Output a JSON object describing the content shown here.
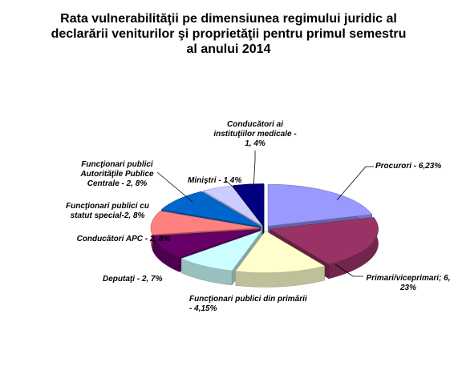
{
  "chart_data": {
    "type": "pie",
    "title": "Rata vulnerabilităţii  pe dimensiunea regimului juridic al declarării veniturilor şi proprietăţii pentru primul semestru al anului 2014",
    "values": [
      6.23,
      6.23,
      4.15,
      2.7,
      2.8,
      2.8,
      2.8,
      1.4,
      1.4
    ],
    "value_labels": [
      "Procurori - 6,23%",
      "Primari/viceprimari; 6, 23%",
      "Funcţionari publici din primării - 4,15%",
      "Deputaţi - 2, 7%",
      "Conducători APC - 2, 8%",
      "Funcţionari publici cu statut special-2, 8%",
      "Funcţionari publici Autorităţile Publice Centrale - 2, 8%",
      "Miniştri - 1 4%",
      "Conducători ai instituţiilor medicale - 1, 4%"
    ],
    "colors": [
      "#9999ff",
      "#993366",
      "#ffffcc",
      "#ccffff",
      "#660066",
      "#ff8080",
      "#0066cc",
      "#ccccff",
      "#000080"
    ]
  }
}
